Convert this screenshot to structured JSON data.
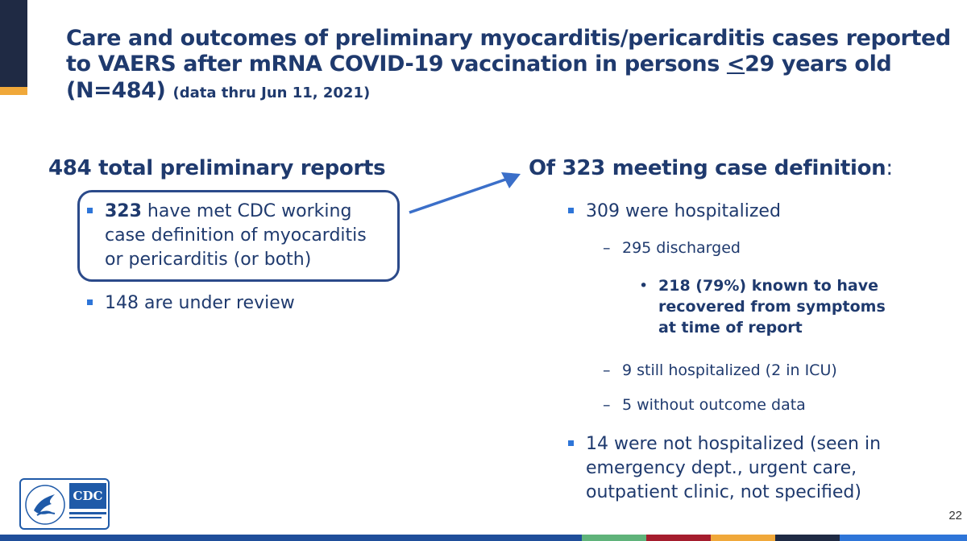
{
  "title": {
    "line1": "Care and outcomes of preliminary myocarditis/pericarditis cases reported",
    "line2_pre": "to VAERS after mRNA COVID-19 vaccination in persons ",
    "line2_under": "<",
    "line2_post": "29 years old",
    "line3_main": "(N=484)",
    "line3_small": "(data thru Jun 11, 2021)"
  },
  "left": {
    "heading": "484 total preliminary reports",
    "bullet1_bold": "323",
    "bullet1_line1_rest": " have met CDC working",
    "bullet1_line2": "case definition of myocarditis",
    "bullet1_line3": "or pericarditis (or both)",
    "bullet2": "148 are under review"
  },
  "right": {
    "heading": "Of 323 meeting case definition",
    "heading_colon": ":",
    "hospitalized": "309 were hospitalized",
    "discharged": "295 discharged",
    "recovered_line1": "218 (79%) known to have",
    "recovered_line2": "recovered from symptoms",
    "recovered_line3": "at time of report",
    "still_hosp": "9 still hospitalized (2 in ICU)",
    "no_outcome": "5 without outcome data",
    "not_hosp_line1": "14 were not hospitalized (seen in",
    "not_hosp_line2": "emergency dept., urgent care,",
    "not_hosp_line3": "outpatient clinic, not specified)"
  },
  "logo": {
    "text": "CDC"
  },
  "page_number": "22",
  "colors": {
    "title_text": "#1f3a6e",
    "bullet_square": "#2e75d8",
    "box_border": "#2b4a8a",
    "arrow": "#3b6fc9",
    "title_bar_dark": "#1f2a44",
    "title_bar_accent": "#f0a83a"
  },
  "footer_colors": [
    "#1f4e9a",
    "#5fb37a",
    "#a51d2d",
    "#f0a83a",
    "#1f2a44",
    "#2e75d8"
  ],
  "icons": {
    "bullet": "square-bullet-icon",
    "arrow": "arrow-icon",
    "logo": "cdc-logo-icon"
  }
}
